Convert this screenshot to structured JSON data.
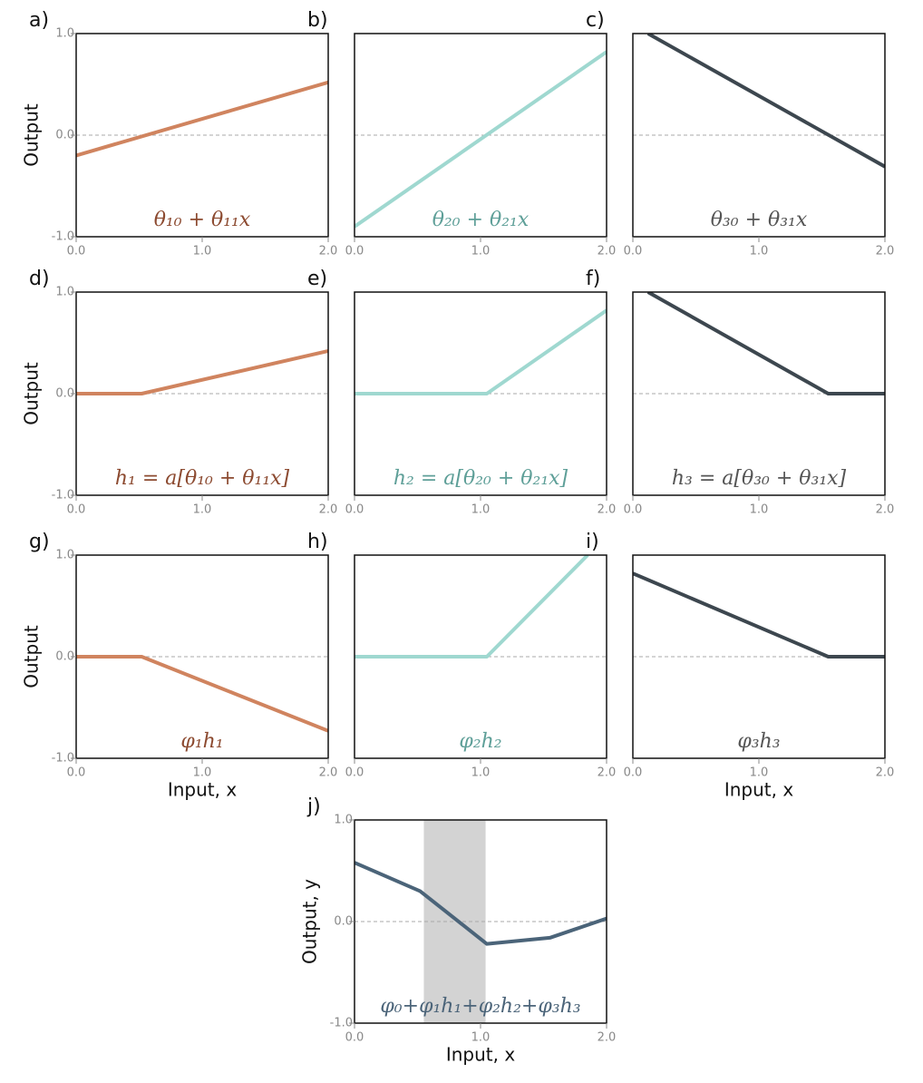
{
  "chart_data": [
    {
      "type": "line",
      "panel_label": "a)",
      "ylabel": "Output",
      "annotation": "θ₁₀ + θ₁₁x",
      "color": "#d0845f",
      "annotation_color": "#8c4a30",
      "x": [
        0,
        2
      ],
      "values": [
        -0.2,
        0.52
      ],
      "xlim": [
        0,
        2
      ],
      "ylim": [
        -1,
        1
      ],
      "baseline": 0,
      "xticks": [
        {
          "value": 0,
          "label": "0.0"
        },
        {
          "value": 1,
          "label": "1.0"
        },
        {
          "value": 2,
          "label": "2.0"
        }
      ],
      "yticks": [
        {
          "value": -1,
          "label": "-1.0"
        },
        {
          "value": 0,
          "label": "0.0"
        },
        {
          "value": 1,
          "label": "1.0"
        }
      ]
    },
    {
      "type": "line",
      "panel_label": "b)",
      "annotation": "θ₂₀ + θ₂₁x",
      "color": "#9fd8d0",
      "annotation_color": "#5e9f98",
      "x": [
        0,
        2
      ],
      "values": [
        -0.9,
        0.82
      ],
      "xlim": [
        0,
        2
      ],
      "ylim": [
        -1,
        1
      ],
      "baseline": 0,
      "xticks": [
        {
          "value": 0,
          "label": "0.0"
        },
        {
          "value": 1,
          "label": "1.0"
        },
        {
          "value": 2,
          "label": "2.0"
        }
      ]
    },
    {
      "type": "line",
      "panel_label": "c)",
      "annotation": "θ₃₀ + θ₃₁x",
      "color": "#3d474f",
      "annotation_color": "#555555",
      "x": [
        0.12,
        2
      ],
      "values": [
        1.0,
        -0.31
      ],
      "xlim": [
        0,
        2
      ],
      "ylim": [
        -1,
        1
      ],
      "baseline": 0,
      "xticks": [
        {
          "value": 0,
          "label": "0.0"
        },
        {
          "value": 1,
          "label": "1.0"
        },
        {
          "value": 2,
          "label": "2.0"
        }
      ]
    },
    {
      "type": "line",
      "panel_label": "d)",
      "ylabel": "Output",
      "annotation": "h₁ = a[θ₁₀ + θ₁₁x]",
      "color": "#d0845f",
      "annotation_color": "#8c4a30",
      "x": [
        0,
        0.52,
        2
      ],
      "values": [
        0,
        0,
        0.42
      ],
      "xlim": [
        0,
        2
      ],
      "ylim": [
        -1,
        1
      ],
      "baseline": 0,
      "xticks": [
        {
          "value": 0,
          "label": "0.0"
        },
        {
          "value": 1,
          "label": "1.0"
        },
        {
          "value": 2,
          "label": "2.0"
        }
      ],
      "yticks": [
        {
          "value": -1,
          "label": "-1.0"
        },
        {
          "value": 0,
          "label": "0.0"
        },
        {
          "value": 1,
          "label": "1.0"
        }
      ]
    },
    {
      "type": "line",
      "panel_label": "e)",
      "annotation": "h₂ = a[θ₂₀ + θ₂₁x]",
      "color": "#9fd8d0",
      "annotation_color": "#5e9f98",
      "x": [
        0,
        1.05,
        2
      ],
      "values": [
        0,
        0,
        0.82
      ],
      "xlim": [
        0,
        2
      ],
      "ylim": [
        -1,
        1
      ],
      "baseline": 0,
      "xticks": [
        {
          "value": 0,
          "label": "0.0"
        },
        {
          "value": 1,
          "label": "1.0"
        },
        {
          "value": 2,
          "label": "2.0"
        }
      ]
    },
    {
      "type": "line",
      "panel_label": "f)",
      "annotation": "h₃ = a[θ₃₀ + θ₃₁x]",
      "color": "#3d474f",
      "annotation_color": "#555555",
      "x": [
        0.12,
        1.55,
        2
      ],
      "values": [
        1.0,
        0,
        0
      ],
      "xlim": [
        0,
        2
      ],
      "ylim": [
        -1,
        1
      ],
      "baseline": 0,
      "xticks": [
        {
          "value": 0,
          "label": "0.0"
        },
        {
          "value": 1,
          "label": "1.0"
        },
        {
          "value": 2,
          "label": "2.0"
        }
      ]
    },
    {
      "type": "line",
      "panel_label": "g)",
      "ylabel": "Output",
      "xlabel": "Input, x",
      "annotation": "φ₁h₁",
      "color": "#d0845f",
      "annotation_color": "#8c4a30",
      "x": [
        0,
        0.52,
        2
      ],
      "values": [
        0,
        0,
        -0.73
      ],
      "xlim": [
        0,
        2
      ],
      "ylim": [
        -1,
        1
      ],
      "baseline": 0,
      "xticks": [
        {
          "value": 0,
          "label": "0.0"
        },
        {
          "value": 1,
          "label": "1.0"
        },
        {
          "value": 2,
          "label": "2.0"
        }
      ],
      "yticks": [
        {
          "value": -1,
          "label": "-1.0"
        },
        {
          "value": 0,
          "label": "0.0"
        },
        {
          "value": 1,
          "label": "1.0"
        }
      ]
    },
    {
      "type": "line",
      "panel_label": "h)",
      "annotation": "φ₂h₂",
      "color": "#9fd8d0",
      "annotation_color": "#5e9f98",
      "x": [
        0,
        1.05,
        1.85
      ],
      "values": [
        0,
        0,
        1.0
      ],
      "xlim": [
        0,
        2
      ],
      "ylim": [
        -1,
        1
      ],
      "baseline": 0,
      "xticks": [
        {
          "value": 0,
          "label": "0.0"
        },
        {
          "value": 1,
          "label": "1.0"
        },
        {
          "value": 2,
          "label": "2.0"
        }
      ]
    },
    {
      "type": "line",
      "panel_label": "i)",
      "xlabel": "Input, x",
      "annotation": "φ₃h₃",
      "color": "#3d474f",
      "annotation_color": "#555555",
      "x": [
        0,
        1.55,
        2
      ],
      "values": [
        0.82,
        0,
        0
      ],
      "xlim": [
        0,
        2
      ],
      "ylim": [
        -1,
        1
      ],
      "baseline": 0,
      "xticks": [
        {
          "value": 0,
          "label": "0.0"
        },
        {
          "value": 1,
          "label": "1.0"
        },
        {
          "value": 2,
          "label": "2.0"
        }
      ]
    },
    {
      "type": "line",
      "panel_label": "j)",
      "ylabel": "Output, y",
      "xlabel": "Input, x",
      "annotation": "φ₀+φ₁h₁+φ₂h₂+φ₃h₃",
      "color": "#4b6479",
      "annotation_color": "#4b6479",
      "x": [
        0,
        0.52,
        1.05,
        1.55,
        2
      ],
      "values": [
        0.58,
        0.3,
        -0.22,
        -0.16,
        0.03
      ],
      "xlim": [
        0,
        2
      ],
      "ylim": [
        -1,
        1
      ],
      "baseline": 0,
      "shade": [
        0.55,
        1.04
      ],
      "shade_color": "#d3d3d3",
      "xticks": [
        {
          "value": 0,
          "label": "0.0"
        },
        {
          "value": 1,
          "label": "1.0"
        },
        {
          "value": 2,
          "label": "2.0"
        }
      ],
      "yticks": [
        {
          "value": -1,
          "label": "-1.0"
        },
        {
          "value": 0,
          "label": "0.0"
        },
        {
          "value": 1,
          "label": "1.0"
        }
      ]
    }
  ]
}
